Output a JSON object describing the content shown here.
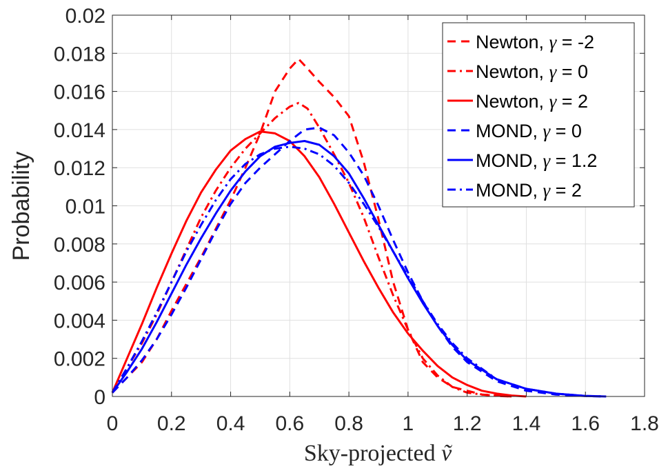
{
  "chart_data": {
    "type": "line",
    "title": "",
    "xlabel_prefix": "Sky-projected",
    "xlabel_symbol": "ṽ",
    "ylabel": "Probability",
    "xlim": [
      0,
      1.8
    ],
    "ylim": [
      0,
      0.02
    ],
    "xticks": [
      0,
      0.2,
      0.4,
      0.6,
      0.8,
      1,
      1.2,
      1.4,
      1.6,
      1.8
    ],
    "xtick_labels": [
      "0",
      "0.2",
      "0.4",
      "0.6",
      "0.8",
      "1",
      "1.2",
      "1.4",
      "1.6",
      "1.8"
    ],
    "yticks": [
      0,
      0.002,
      0.004,
      0.006,
      0.008,
      0.01,
      0.012,
      0.014,
      0.016,
      0.018,
      0.02
    ],
    "ytick_labels": [
      "0",
      "0.002",
      "0.004",
      "0.006",
      "0.008",
      "0.01",
      "0.012",
      "0.014",
      "0.016",
      "0.018",
      "0.02"
    ],
    "grid": true,
    "legend_position": "top-right",
    "series": [
      {
        "name_prefix": "Newton, ",
        "gamma_symbol": "γ",
        "name_suffix": " = -2",
        "color": "#ff0000",
        "style": "dashed",
        "x": [
          0.0,
          0.05,
          0.1,
          0.15,
          0.2,
          0.3,
          0.4,
          0.45,
          0.5,
          0.55,
          0.6,
          0.63,
          0.66,
          0.7,
          0.75,
          0.8,
          0.85,
          0.9,
          0.95,
          1.0,
          1.05,
          1.1,
          1.15,
          1.2,
          1.25,
          1.3,
          1.35
        ],
        "y": [
          0.0002,
          0.001,
          0.0018,
          0.003,
          0.0045,
          0.0073,
          0.0103,
          0.012,
          0.0138,
          0.016,
          0.0172,
          0.0177,
          0.0172,
          0.0165,
          0.0157,
          0.0147,
          0.0123,
          0.0093,
          0.006,
          0.0035,
          0.0018,
          0.001,
          0.0005,
          0.0003,
          0.0001,
          5e-05,
          0.0
        ]
      },
      {
        "name_prefix": "Newton, ",
        "gamma_symbol": "γ",
        "name_suffix": " = 0",
        "color": "#ff0000",
        "style": "dashdot",
        "x": [
          0.0,
          0.05,
          0.1,
          0.15,
          0.2,
          0.25,
          0.3,
          0.35,
          0.4,
          0.45,
          0.5,
          0.55,
          0.6,
          0.63,
          0.66,
          0.7,
          0.75,
          0.8,
          0.85,
          0.9,
          0.95,
          1.0,
          1.05,
          1.1,
          1.15,
          1.2,
          1.25,
          1.3,
          1.35
        ],
        "y": [
          0.0002,
          0.0015,
          0.0028,
          0.0043,
          0.006,
          0.0077,
          0.0094,
          0.0108,
          0.012,
          0.013,
          0.0138,
          0.0146,
          0.0152,
          0.0154,
          0.0151,
          0.0141,
          0.0127,
          0.0112,
          0.0094,
          0.0073,
          0.0053,
          0.0035,
          0.002,
          0.0011,
          0.0005,
          0.0002,
          0.0001,
          3e-05,
          0.0
        ]
      },
      {
        "name_prefix": "Newton, ",
        "gamma_symbol": "γ",
        "name_suffix": " = 2",
        "color": "#ff0000",
        "style": "solid",
        "x": [
          0.0,
          0.05,
          0.1,
          0.15,
          0.2,
          0.25,
          0.3,
          0.35,
          0.4,
          0.45,
          0.5,
          0.55,
          0.6,
          0.65,
          0.7,
          0.75,
          0.8,
          0.85,
          0.9,
          0.95,
          1.0,
          1.05,
          1.1,
          1.15,
          1.2,
          1.25,
          1.3,
          1.35,
          1.4
        ],
        "y": [
          0.0002,
          0.002,
          0.0038,
          0.0057,
          0.0075,
          0.0092,
          0.0107,
          0.0119,
          0.0129,
          0.0135,
          0.0139,
          0.0138,
          0.0134,
          0.0126,
          0.0115,
          0.0101,
          0.0086,
          0.0071,
          0.0057,
          0.0044,
          0.0033,
          0.0024,
          0.0016,
          0.001,
          0.0006,
          0.0003,
          0.00015,
          5e-05,
          0.0
        ]
      },
      {
        "name_prefix": "MOND, ",
        "gamma_symbol": "γ",
        "name_suffix": " = 0",
        "color": "#0000ff",
        "style": "dashed",
        "x": [
          0.0,
          0.05,
          0.1,
          0.15,
          0.2,
          0.25,
          0.3,
          0.35,
          0.4,
          0.45,
          0.5,
          0.55,
          0.6,
          0.65,
          0.7,
          0.75,
          0.8,
          0.85,
          0.9,
          0.95,
          1.0,
          1.05,
          1.1,
          1.15,
          1.2,
          1.3,
          1.4,
          1.5,
          1.6,
          1.67
        ],
        "y": [
          0.0002,
          0.001,
          0.0019,
          0.003,
          0.0043,
          0.0057,
          0.0072,
          0.0087,
          0.0101,
          0.0112,
          0.012,
          0.0127,
          0.0134,
          0.014,
          0.0141,
          0.0137,
          0.0128,
          0.0116,
          0.01,
          0.0082,
          0.0065,
          0.005,
          0.0037,
          0.0026,
          0.0018,
          0.0008,
          0.0003,
          0.0001,
          2e-05,
          0.0
        ]
      },
      {
        "name_prefix": "MOND, ",
        "gamma_symbol": "γ",
        "name_suffix": " = 1.2",
        "color": "#0000ff",
        "style": "solid",
        "x": [
          0.0,
          0.05,
          0.1,
          0.15,
          0.2,
          0.25,
          0.3,
          0.35,
          0.4,
          0.45,
          0.5,
          0.55,
          0.6,
          0.65,
          0.7,
          0.75,
          0.8,
          0.85,
          0.9,
          0.95,
          1.0,
          1.05,
          1.1,
          1.15,
          1.2,
          1.3,
          1.4,
          1.5,
          1.6,
          1.67
        ],
        "y": [
          0.0002,
          0.0013,
          0.0025,
          0.0039,
          0.0054,
          0.0069,
          0.0083,
          0.0096,
          0.0108,
          0.0118,
          0.0126,
          0.0131,
          0.0133,
          0.0134,
          0.0132,
          0.0126,
          0.0117,
          0.0104,
          0.009,
          0.0076,
          0.0062,
          0.0049,
          0.0037,
          0.0027,
          0.0019,
          0.0009,
          0.0004,
          0.00015,
          3e-05,
          0.0
        ]
      },
      {
        "name_prefix": "MOND, ",
        "gamma_symbol": "γ",
        "name_suffix": " = 2",
        "color": "#0000ff",
        "style": "dashdot",
        "x": [
          0.0,
          0.05,
          0.1,
          0.15,
          0.2,
          0.25,
          0.3,
          0.35,
          0.4,
          0.45,
          0.5,
          0.55,
          0.6,
          0.65,
          0.7,
          0.75,
          0.8,
          0.85,
          0.9,
          0.95,
          1.0,
          1.05,
          1.1,
          1.15,
          1.2,
          1.3,
          1.4,
          1.5,
          1.6,
          1.67
        ],
        "y": [
          0.0002,
          0.0015,
          0.0029,
          0.0044,
          0.006,
          0.0076,
          0.009,
          0.0103,
          0.0114,
          0.0122,
          0.0127,
          0.013,
          0.0131,
          0.013,
          0.0127,
          0.0121,
          0.0112,
          0.0101,
          0.0089,
          0.0076,
          0.0063,
          0.005,
          0.0038,
          0.0028,
          0.002,
          0.0009,
          0.0004,
          0.00015,
          3e-05,
          0.0
        ]
      }
    ]
  }
}
